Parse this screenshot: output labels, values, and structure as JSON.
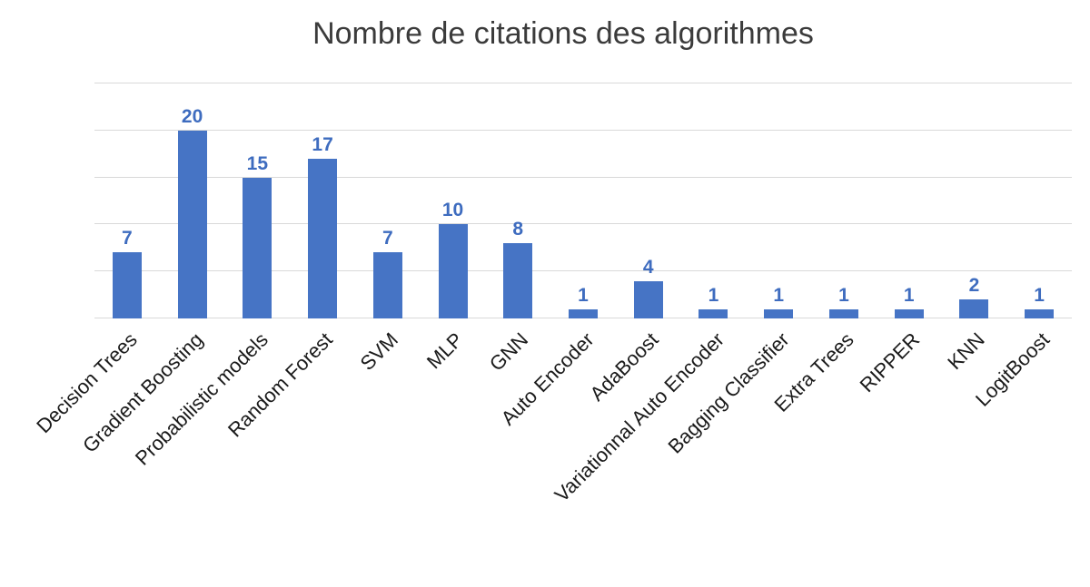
{
  "title": "Nombre de citations des algorithmes",
  "chart_data": {
    "type": "bar",
    "title": "Nombre de citations des algorithmes",
    "categories": [
      "Decision Trees",
      "Gradient Boosting",
      "Probabilistic models",
      "Random Forest",
      "SVM",
      "MLP",
      "GNN",
      "Auto Encoder",
      "AdaBoost",
      "Variationnal Auto Encoder",
      "Bagging Classifier",
      "Extra Trees",
      "RIPPER",
      "KNN",
      "LogitBoost"
    ],
    "values": [
      7,
      20,
      15,
      17,
      7,
      10,
      8,
      1,
      4,
      1,
      1,
      1,
      1,
      2,
      1
    ],
    "xlabel": "",
    "ylabel": "",
    "ylim": [
      0,
      25
    ],
    "gridline_step": 5,
    "grid": true,
    "legend_position": "none",
    "value_labels_shown": true,
    "y_tick_labels_shown": false,
    "bar_color": "#4674c5",
    "value_label_color": "#3e6cbf",
    "axis_label_color": "#1a1a1a",
    "gridline_color": "#d9d9d9",
    "title_color": "#3b3b3b",
    "background_color": "#ffffff"
  }
}
